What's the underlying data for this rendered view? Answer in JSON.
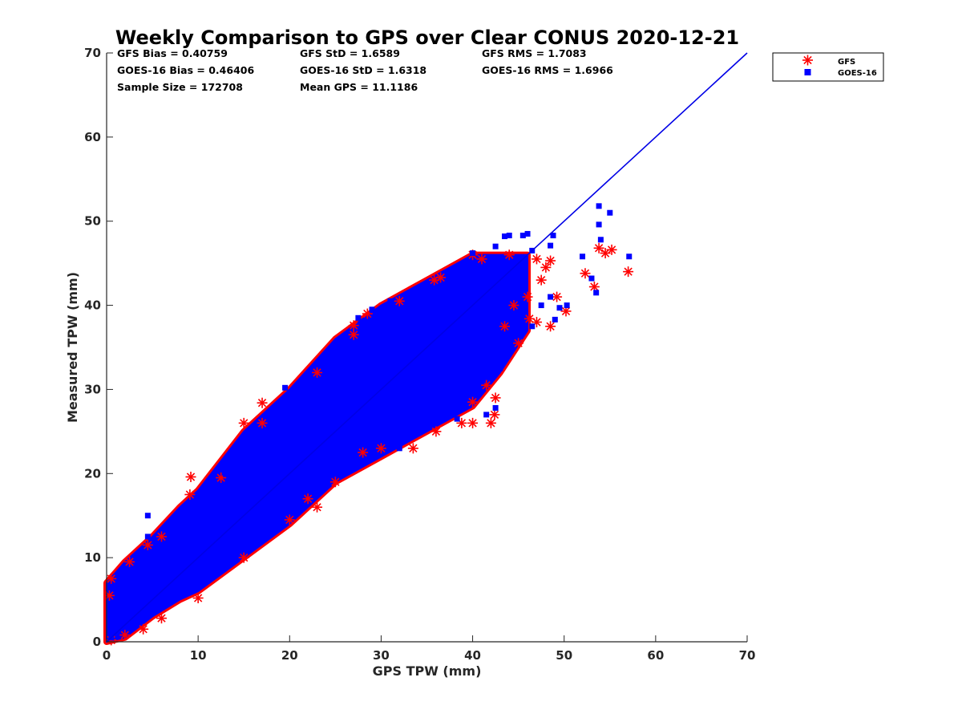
{
  "chart_data": {
    "type": "scatter",
    "title": "Weekly Comparison to GPS over Clear CONUS 2020-12-21",
    "xlabel": "GPS TPW (mm)",
    "ylabel": "Measured TPW (mm)",
    "xlim": [
      0,
      70
    ],
    "ylim": [
      0,
      70
    ],
    "xticks": [
      "0",
      "10",
      "20",
      "30",
      "40",
      "50",
      "60",
      "70"
    ],
    "yticks": [
      "0",
      "10",
      "20",
      "30",
      "40",
      "50",
      "60",
      "70"
    ],
    "grid": false,
    "legend_position": "outside-top-right",
    "reference_line": {
      "x": [
        0,
        70
      ],
      "y": [
        0,
        70
      ],
      "color": "#0000e6"
    },
    "stats": [
      "GFS Bias = 0.40759",
      "GFS StD = 1.6589",
      "GFS RMS = 1.7083",
      "GOES-16 Bias = 0.46406",
      "GOES-16 StD = 1.6318",
      "GOES-16 RMS = 1.6966",
      "Sample Size = 172708",
      "Mean GPS = 11.1186"
    ],
    "dense_band": [
      [
        0,
        0,
        7
      ],
      [
        2,
        0.5,
        9.5
      ],
      [
        5,
        3,
        12.5
      ],
      [
        8,
        5,
        16
      ],
      [
        10,
        6,
        18
      ],
      [
        15,
        10,
        25
      ],
      [
        20,
        14,
        30
      ],
      [
        25,
        19,
        36
      ],
      [
        30,
        22,
        40
      ],
      [
        35,
        25,
        43
      ],
      [
        40,
        28,
        46
      ],
      [
        43,
        32,
        46
      ],
      [
        46,
        37,
        46
      ]
    ],
    "series": [
      {
        "name": "GFS",
        "marker": "asterisk",
        "color": "#ff0000",
        "points": [
          [
            9.2,
            19.6
          ],
          [
            9.1,
            17.5
          ],
          [
            12.5,
            19.5
          ],
          [
            15,
            26
          ],
          [
            17,
            28.4
          ],
          [
            17,
            26
          ],
          [
            23,
            32
          ],
          [
            27,
            37.6
          ],
          [
            27,
            36.5
          ],
          [
            28.5,
            39
          ],
          [
            32,
            40.5
          ],
          [
            35.8,
            43
          ],
          [
            36.5,
            43.3
          ],
          [
            40,
            46
          ],
          [
            41,
            45.5
          ],
          [
            44,
            46
          ],
          [
            47,
            45.5
          ],
          [
            48.5,
            45.3
          ],
          [
            46,
            41
          ],
          [
            47,
            38
          ],
          [
            48.5,
            37.5
          ],
          [
            49.2,
            41
          ],
          [
            50.2,
            39.3
          ],
          [
            52.3,
            43.8
          ],
          [
            53.3,
            42.2
          ],
          [
            53.8,
            46.8
          ],
          [
            54.5,
            46.2
          ],
          [
            55.2,
            46.6
          ],
          [
            57,
            44
          ],
          [
            42.5,
            29
          ],
          [
            42.4,
            27
          ],
          [
            41.5,
            30.5
          ],
          [
            40,
            28.5
          ],
          [
            38.8,
            26
          ],
          [
            42,
            26
          ],
          [
            40,
            26
          ],
          [
            36,
            25
          ],
          [
            33.5,
            23
          ],
          [
            28,
            22.5
          ],
          [
            23,
            16
          ],
          [
            15,
            10
          ],
          [
            10,
            5.2
          ],
          [
            6,
            2.8
          ],
          [
            4,
            1.5
          ],
          [
            2,
            0.8
          ],
          [
            0.5,
            0.2
          ],
          [
            0.3,
            5.5
          ],
          [
            0.5,
            7.5
          ],
          [
            2.5,
            9.5
          ],
          [
            4.5,
            11.5
          ],
          [
            6,
            12.5
          ],
          [
            20,
            14.5
          ],
          [
            22,
            17
          ],
          [
            25,
            19
          ],
          [
            30,
            23
          ],
          [
            43.5,
            37.5
          ],
          [
            46.2,
            38.4
          ],
          [
            44.5,
            40
          ],
          [
            45,
            35.5
          ],
          [
            47.5,
            43
          ],
          [
            48,
            44.5
          ]
        ]
      },
      {
        "name": "GOES-16",
        "marker": "square",
        "color": "#0000ff",
        "points": [
          [
            4.5,
            15
          ],
          [
            4.5,
            12.5
          ],
          [
            13,
            20
          ],
          [
            15.3,
            22.8
          ],
          [
            16.5,
            23.5
          ],
          [
            19.5,
            30.2
          ],
          [
            20.5,
            28.5
          ],
          [
            21.5,
            29
          ],
          [
            22,
            30.2
          ],
          [
            27.5,
            38.5
          ],
          [
            29,
            39.5
          ],
          [
            31,
            40.5
          ],
          [
            34,
            41.5
          ],
          [
            37.5,
            43.3
          ],
          [
            40,
            46.2
          ],
          [
            42.5,
            47
          ],
          [
            43.5,
            48.2
          ],
          [
            44,
            48.3
          ],
          [
            45.5,
            48.3
          ],
          [
            46,
            48.5
          ],
          [
            48.8,
            48.3
          ],
          [
            48.5,
            47.1
          ],
          [
            45.5,
            44.5
          ],
          [
            46.5,
            46.5
          ],
          [
            47.5,
            40
          ],
          [
            48.5,
            41
          ],
          [
            49,
            38.3
          ],
          [
            49.5,
            39.7
          ],
          [
            50.3,
            40
          ],
          [
            52,
            45.8
          ],
          [
            53,
            43.2
          ],
          [
            53.5,
            41.5
          ],
          [
            53.8,
            51.8
          ],
          [
            53.8,
            49.6
          ],
          [
            54,
            47.8
          ],
          [
            55,
            51
          ],
          [
            57.1,
            45.8
          ],
          [
            42.5,
            27.8
          ],
          [
            41.5,
            27
          ],
          [
            41,
            31
          ],
          [
            39.5,
            31
          ],
          [
            38.3,
            26.5
          ],
          [
            34,
            26
          ],
          [
            32,
            23
          ],
          [
            29,
            22.5
          ],
          [
            31.5,
            27
          ],
          [
            44.5,
            37.2
          ],
          [
            45.2,
            37.5
          ],
          [
            46.5,
            37.5
          ],
          [
            42,
            35
          ],
          [
            43,
            32.5
          ],
          [
            24.5,
            33.2
          ],
          [
            25.5,
            35.8
          ],
          [
            18,
            24
          ],
          [
            10,
            14
          ],
          [
            0.5,
            0.5
          ],
          [
            1,
            1
          ],
          [
            8,
            10
          ],
          [
            12,
            12
          ],
          [
            35,
            33
          ],
          [
            38,
            36
          ]
        ]
      }
    ]
  }
}
